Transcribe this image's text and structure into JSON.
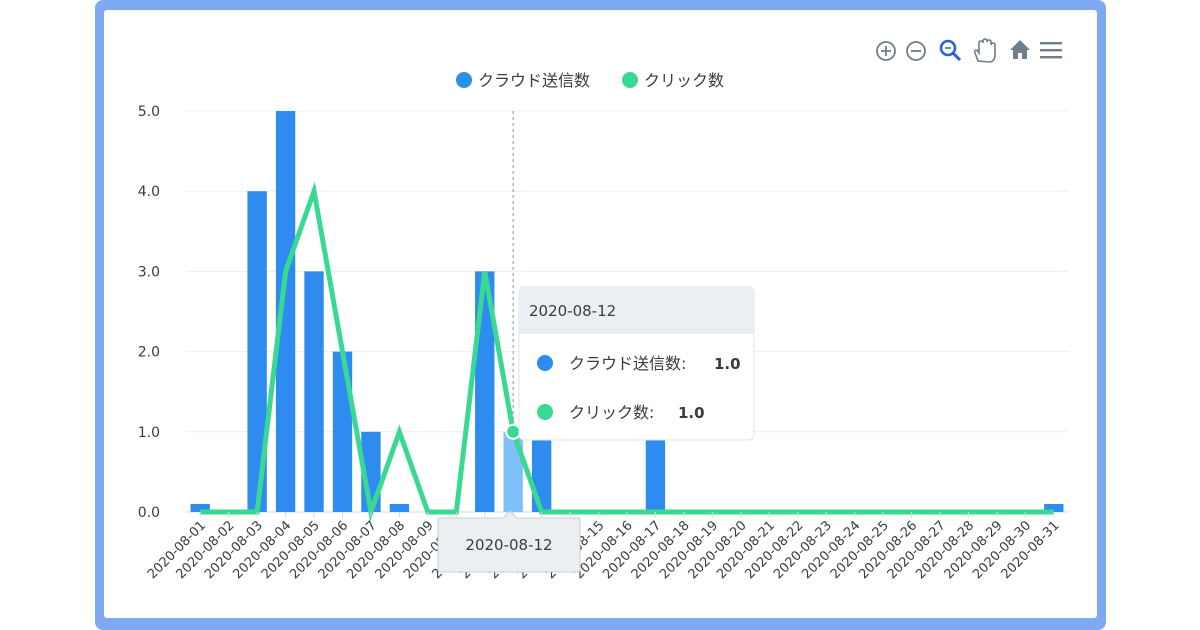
{
  "toolbar": {
    "icons": [
      "zoom-in-icon",
      "zoom-out-icon",
      "selection-zoom-icon",
      "pan-icon",
      "home-icon",
      "menu-icon"
    ],
    "active_color": "#2b63d0",
    "color": "#6f7d8c"
  },
  "chart_data": {
    "type": "bar",
    "categories": [
      "2020-08-01",
      "2020-08-02",
      "2020-08-03",
      "2020-08-04",
      "2020-08-05",
      "2020-08-06",
      "2020-08-07",
      "2020-08-08",
      "2020-08-09",
      "2020-08-10",
      "2020-08-11",
      "2020-08-12",
      "2020-08-13",
      "2020-08-14",
      "2020-08-15",
      "2020-08-16",
      "2020-08-17",
      "2020-08-18",
      "2020-08-19",
      "2020-08-20",
      "2020-08-21",
      "2020-08-22",
      "2020-08-23",
      "2020-08-24",
      "2020-08-25",
      "2020-08-26",
      "2020-08-27",
      "2020-08-28",
      "2020-08-29",
      "2020-08-30",
      "2020-08-31"
    ],
    "series": [
      {
        "name": "クラウド送信数",
        "type": "bar",
        "color": "#2e8cf0",
        "values": [
          0.1,
          0,
          4,
          5,
          3,
          2,
          1,
          0.1,
          0,
          0,
          3,
          1,
          1,
          0,
          0,
          0,
          1,
          0,
          0,
          0,
          0,
          0,
          0,
          0,
          0,
          0,
          0,
          0,
          0,
          0,
          0.1
        ]
      },
      {
        "name": "クリック数",
        "type": "line",
        "color": "#3ad993",
        "values": [
          0,
          0,
          0,
          3,
          4,
          2,
          0,
          1,
          0,
          0,
          3,
          1,
          0,
          0,
          0,
          0,
          0,
          0,
          0,
          0,
          0,
          0,
          0,
          0,
          0,
          0,
          0,
          0,
          0,
          0,
          0
        ]
      }
    ],
    "ylim": [
      0,
      5
    ],
    "yticks": [
      "0.0",
      "1.0",
      "2.0",
      "3.0",
      "4.0",
      "5.0"
    ],
    "grid": true,
    "legend_position": "top-center",
    "tooltip": {
      "category_index": 11,
      "title": "2020-08-12",
      "items": [
        {
          "label": "クラウド送信数:",
          "value": "1.0"
        },
        {
          "label": "クリック数:",
          "value": "1.0"
        }
      ],
      "x_label": "2020-08-12"
    }
  }
}
